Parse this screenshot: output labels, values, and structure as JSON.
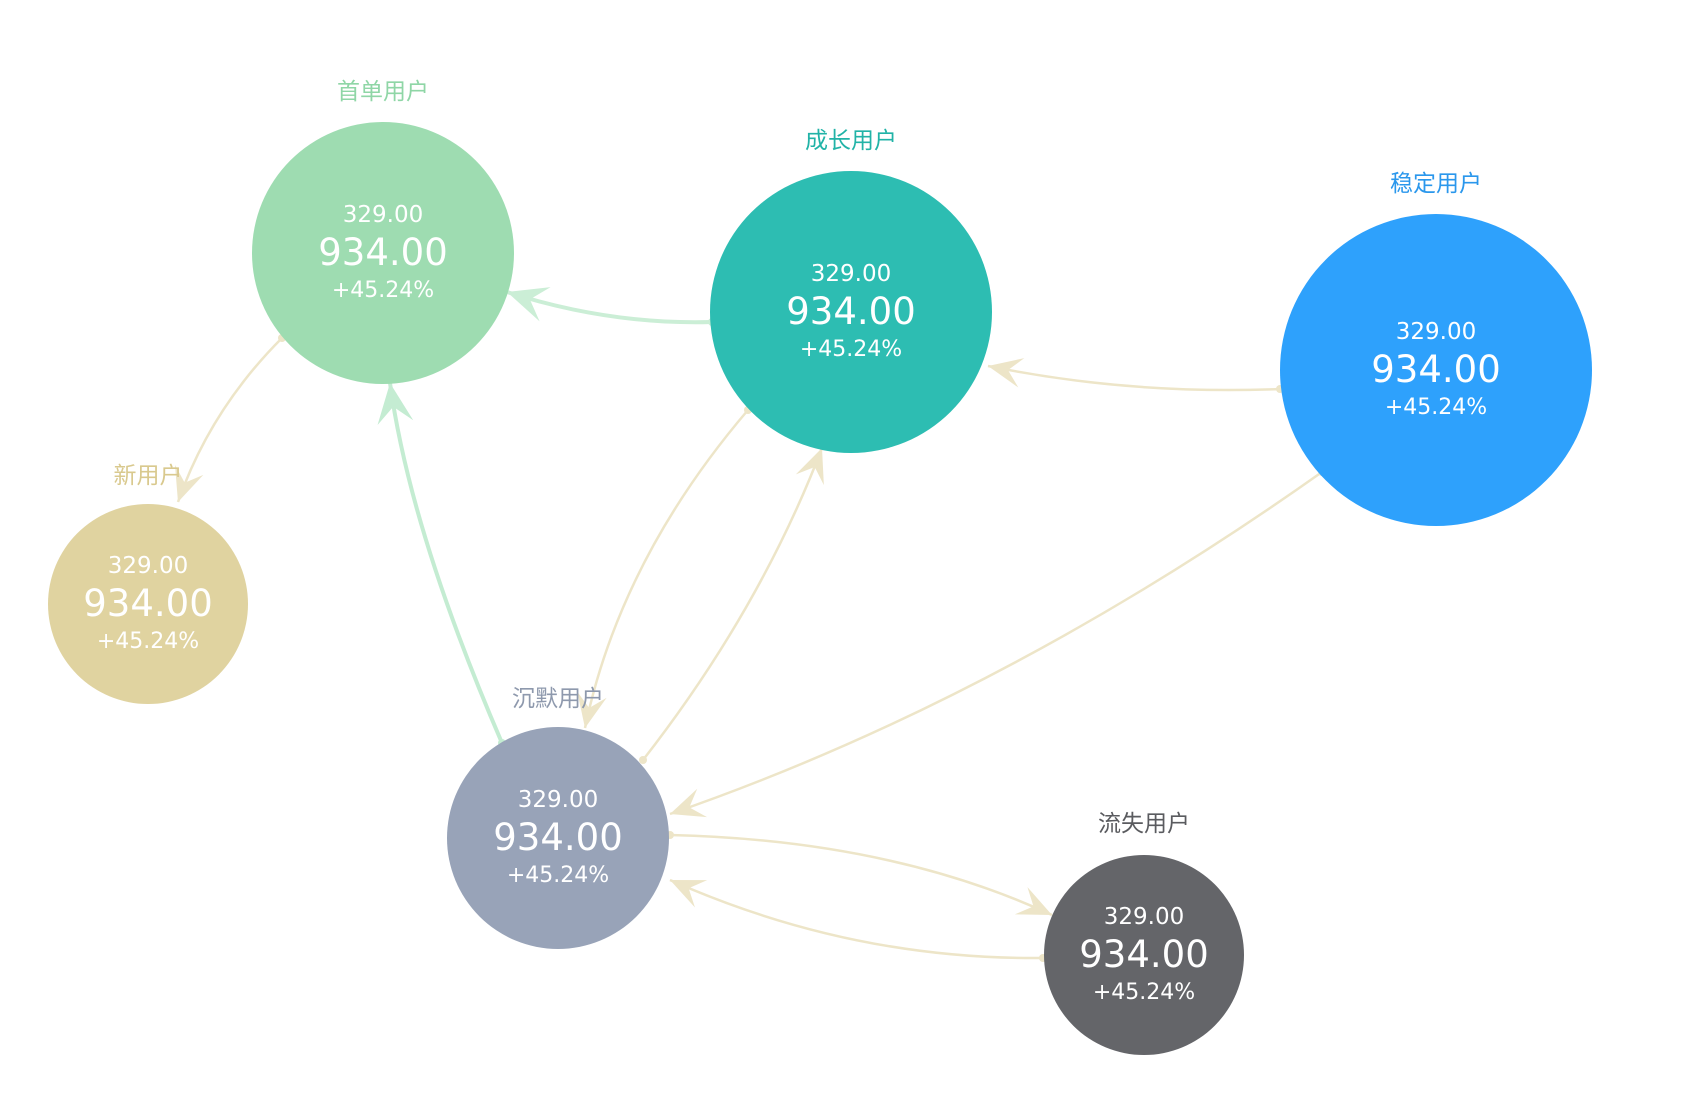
{
  "diagram": {
    "nodes": [
      {
        "id": "new",
        "title": "新用户",
        "value_top": "329.00",
        "value_main": "934.00",
        "change": "+45.24%",
        "color": "#e0d3a0",
        "title_color": "#d9c98e"
      },
      {
        "id": "first",
        "title": "首单用户",
        "value_top": "329.00",
        "value_main": "934.00",
        "change": "+45.24%",
        "color": "#9edcb1",
        "title_color": "#8fd6a6"
      },
      {
        "id": "growth",
        "title": "成长用户",
        "value_top": "329.00",
        "value_main": "934.00",
        "change": "+45.24%",
        "color": "#2dbdb2",
        "title_color": "#21b3a7"
      },
      {
        "id": "stable",
        "title": "稳定用户",
        "value_top": "329.00",
        "value_main": "934.00",
        "change": "+45.24%",
        "color": "#2ea1fc",
        "title_color": "#2a97ec"
      },
      {
        "id": "silent",
        "title": "沉默用户",
        "value_top": "329.00",
        "value_main": "934.00",
        "change": "+45.24%",
        "color": "#98a3b8",
        "title_color": "#8e99ad"
      },
      {
        "id": "lost",
        "title": "流失用户",
        "value_top": "329.00",
        "value_main": "934.00",
        "change": "+45.24%",
        "color": "#646569",
        "title_color": "#5a5b5f"
      }
    ],
    "edges": [
      {
        "from": "first",
        "to": "new",
        "color": "#ede5c8"
      },
      {
        "from": "growth",
        "to": "first",
        "color": "#cbeed6"
      },
      {
        "from": "silent",
        "to": "first",
        "color": "#c4ecd2"
      },
      {
        "from": "stable",
        "to": "growth",
        "color": "#ede5c8"
      },
      {
        "from": "growth",
        "to": "silent",
        "color": "#ede5c8"
      },
      {
        "from": "silent",
        "to": "growth",
        "color": "#ede5c8"
      },
      {
        "from": "stable",
        "to": "silent",
        "color": "#ede5c8"
      },
      {
        "from": "silent",
        "to": "lost",
        "color": "#ede5c8"
      },
      {
        "from": "lost",
        "to": "silent",
        "color": "#ede5c8"
      }
    ]
  }
}
